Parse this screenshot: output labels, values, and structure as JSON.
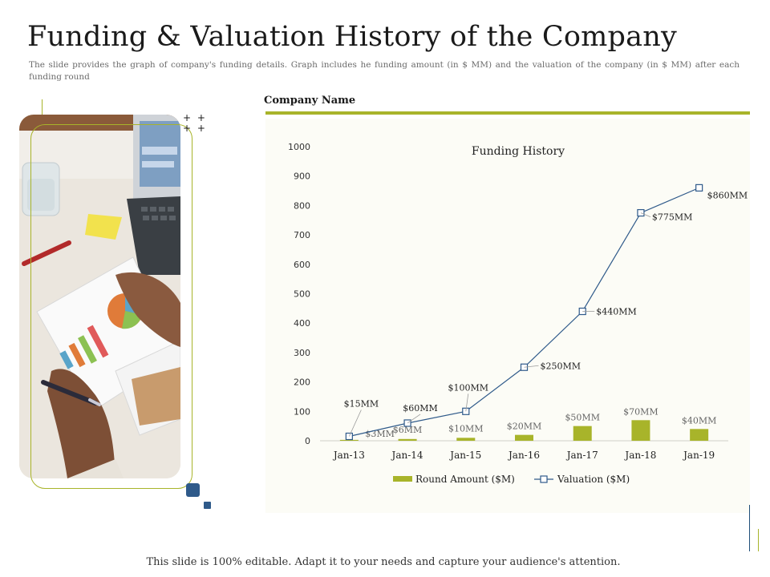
{
  "slide": {
    "title": "Funding & Valuation History of the Company",
    "subtitle": "The slide provides the graph of company's funding details. Graph includes he funding amount (in $ MM) and the valuation of the company (in $ MM) after each funding round",
    "company_label": "Company Name",
    "footer": "This slide is 100% editable. Adapt it to your needs and capture your audience's attention.",
    "plus_marks": "+ +\n+ +"
  },
  "colors": {
    "accent": "#a8b42a",
    "navy": "#2f5a8a",
    "bar": "#a8b42a",
    "line": "#2f5a8a"
  },
  "chart_data": {
    "type": "bar",
    "title": "Funding History",
    "categories": [
      "Jan-13",
      "Jan-14",
      "Jan-15",
      "Jan-16",
      "Jan-17",
      "Jan-18",
      "Jan-19"
    ],
    "ylim": [
      0,
      1000
    ],
    "yticks": [
      0,
      100,
      200,
      300,
      400,
      500,
      600,
      700,
      800,
      900,
      1000
    ],
    "grid": false,
    "legend_position": "bottom",
    "series": [
      {
        "name": "Round Amount ($M)",
        "type": "bar",
        "values": [
          3,
          6,
          10,
          20,
          50,
          70,
          40
        ],
        "labels": [
          "$3MM",
          "$6MM",
          "$10MM",
          "$20MM",
          "$50MM",
          "$70MM",
          "$40MM"
        ]
      },
      {
        "name": "Valuation ($M)",
        "type": "line",
        "marker": "square",
        "values": [
          15,
          60,
          100,
          250,
          440,
          775,
          860
        ],
        "labels": [
          "$15MM",
          "$60MM",
          "$100MM",
          "$250MM",
          "$440MM",
          "$775MM",
          "$860MM"
        ]
      }
    ]
  }
}
